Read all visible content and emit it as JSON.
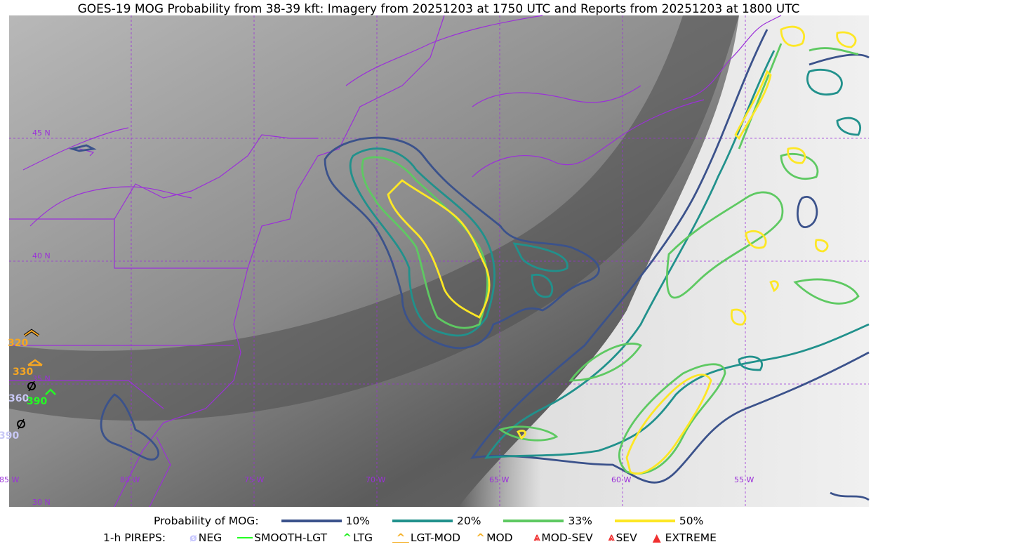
{
  "title": "GOES-19 MOG Probability from 38-39 kft: Imagery from 20251203 at 1750 UTC and Reports from 20251203 at 1800 UTC",
  "map": {
    "lat_labels": [
      "45 N",
      "40 N",
      "35 N",
      "30 N"
    ],
    "lon_labels": [
      "85 W",
      "80 W",
      "75 W",
      "70 W",
      "65 W",
      "60 W",
      "55 W"
    ],
    "gridline_color": "#9b30d9",
    "border_color": "#9b30d9",
    "pireps": [
      {
        "label": "320",
        "type": "MOD",
        "color": "#f5a623"
      },
      {
        "label": "330",
        "type": "LGT-MOD",
        "color": "#f5a623"
      },
      {
        "label": "360",
        "type": "NEG",
        "color": "#c8c8f5"
      },
      {
        "label": "390",
        "type": "LTG",
        "color": "#22ff22"
      },
      {
        "label": "390",
        "type": "NEG",
        "color": "#c8c8f5"
      }
    ]
  },
  "legend": {
    "prob_title": "Probability of MOG:",
    "prob_levels": [
      {
        "label": "10%",
        "color": "#3b528b"
      },
      {
        "label": "20%",
        "color": "#21918c"
      },
      {
        "label": "33%",
        "color": "#5ec962"
      },
      {
        "label": "50%",
        "color": "#fde725"
      }
    ],
    "pirep_title": "1-h PIREPS:",
    "pirep_types": [
      {
        "label": "NEG",
        "color": "#c8c8ff",
        "icon": "neg-icon"
      },
      {
        "label": "SMOOTH-LGT",
        "color": "#22ff22",
        "icon": "smooth-lgt-line-icon"
      },
      {
        "label": "LTG",
        "color": "#22ee22",
        "icon": "ltg-caret-icon"
      },
      {
        "label": "LGT-MOD",
        "color": "#f5b027",
        "icon": "lgt-mod-icon"
      },
      {
        "label": "MOD",
        "color": "#f5b027",
        "icon": "mod-caret-icon"
      },
      {
        "label": "MOD-SEV",
        "color": "#f03030",
        "icon": "mod-sev-icon"
      },
      {
        "label": "SEV",
        "color": "#f03030",
        "icon": "sev-icon"
      },
      {
        "label": "EXTREME",
        "color": "#f03030",
        "icon": "extreme-icon"
      }
    ]
  }
}
